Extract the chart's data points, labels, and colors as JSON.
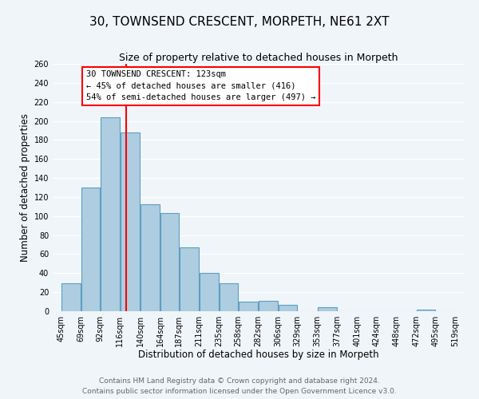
{
  "title": "30, TOWNSEND CRESCENT, MORPETH, NE61 2XT",
  "subtitle": "Size of property relative to detached houses in Morpeth",
  "xlabel": "Distribution of detached houses by size in Morpeth",
  "ylabel": "Number of detached properties",
  "bar_color": "#aecde1",
  "bar_edge_color": "#5b9fc0",
  "bar_left_edges": [
    45,
    69,
    92,
    116,
    140,
    164,
    187,
    211,
    235,
    258,
    282,
    306,
    329,
    353,
    377,
    401,
    424,
    448,
    472,
    495
  ],
  "bar_widths": [
    24,
    23,
    24,
    24,
    24,
    23,
    24,
    24,
    23,
    24,
    24,
    23,
    24,
    24,
    24,
    23,
    24,
    24,
    23,
    24
  ],
  "bar_heights": [
    29,
    130,
    204,
    188,
    112,
    103,
    67,
    40,
    29,
    10,
    11,
    7,
    0,
    4,
    0,
    0,
    0,
    0,
    2,
    0
  ],
  "x_tick_labels": [
    "45sqm",
    "69sqm",
    "92sqm",
    "116sqm",
    "140sqm",
    "164sqm",
    "187sqm",
    "211sqm",
    "235sqm",
    "258sqm",
    "282sqm",
    "306sqm",
    "329sqm",
    "353sqm",
    "377sqm",
    "401sqm",
    "424sqm",
    "448sqm",
    "472sqm",
    "495sqm",
    "519sqm"
  ],
  "x_tick_positions": [
    45,
    69,
    92,
    116,
    140,
    164,
    187,
    211,
    235,
    258,
    282,
    306,
    329,
    353,
    377,
    401,
    424,
    448,
    472,
    495,
    519
  ],
  "ylim": [
    0,
    260
  ],
  "xlim": [
    35,
    530
  ],
  "red_line_x": 123,
  "annotation_title": "30 TOWNSEND CRESCENT: 123sqm",
  "annotation_line1": "← 45% of detached houses are smaller (416)",
  "annotation_line2": "54% of semi-detached houses are larger (497) →",
  "footer_line1": "Contains HM Land Registry data © Crown copyright and database right 2024.",
  "footer_line2": "Contains public sector information licensed under the Open Government Licence v3.0.",
  "background_color": "#f0f5fa",
  "grid_color": "#ffffff",
  "title_fontsize": 11,
  "subtitle_fontsize": 9,
  "axis_label_fontsize": 8.5,
  "tick_fontsize": 7,
  "annotation_fontsize": 7.5,
  "footer_fontsize": 6.5
}
